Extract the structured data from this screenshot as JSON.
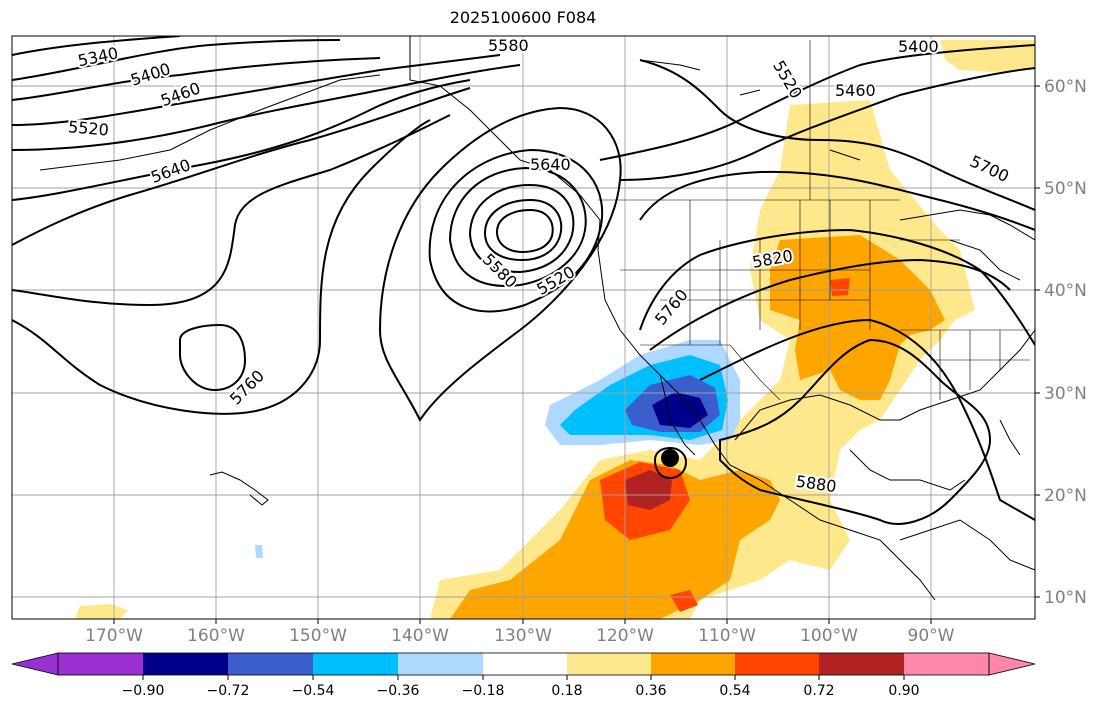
{
  "title": "2025100600 F084",
  "lat_labels": [
    "60°N",
    "50°N",
    "40°N",
    "30°N",
    "20°N",
    "10°N"
  ],
  "lon_labels": [
    "170°W",
    "160°W",
    "150°W",
    "140°W",
    "130°W",
    "120°W",
    "110°W",
    "100°W",
    "90°W"
  ],
  "contour_labels": [
    "5340",
    "5400",
    "5460",
    "5520",
    "5640",
    "5580",
    "5520",
    "5640",
    "5580",
    "5520",
    "5760",
    "5760",
    "5820",
    "5700",
    "5460",
    "5400",
    "5880"
  ],
  "colorbar": {
    "ticks": [
      "−0.90",
      "−0.72",
      "−0.54",
      "−0.36",
      "−0.18",
      "0.18",
      "0.36",
      "0.54",
      "0.72",
      "0.90"
    ],
    "colors": [
      "#9b30d0",
      "#00008b",
      "#3a5fcd",
      "#00bfff",
      "#add8ff",
      "#ffffff",
      "#ffe88c",
      "#ffa500",
      "#ff4500",
      "#b22222",
      "#ff88aa"
    ]
  },
  "colors": {
    "neg_dark": "#00008b",
    "neg_mid": "#3a5fcd",
    "neg": "#00bfff",
    "neg_light": "#add8ff",
    "pos_light": "#ffe88c",
    "pos": "#ffa500",
    "pos_mid": "#ff4500",
    "pos_dark": "#b22222"
  },
  "storm_marker": "hurricane-icon"
}
